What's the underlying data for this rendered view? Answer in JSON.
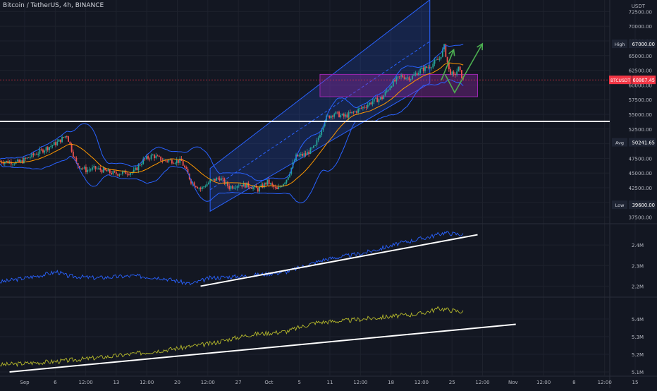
{
  "header": {
    "symbol_title": "Bitcoin / TetherUS, 4h, BINANCE"
  },
  "colors": {
    "background": "#131722",
    "grid": "#1e222d",
    "candle_up": "#26a69a",
    "candle_down": "#ef5350",
    "bollinger": "#2962ff",
    "ma": "#ff9800",
    "channel": "#2962ff",
    "zone": "#9c27b0",
    "arrow": "#4caf50",
    "obv": "#2962ff",
    "indicator2": "#b5b82b",
    "support": "#ffffff",
    "label_bg": "#131722",
    "price_tag": "#f23645"
  },
  "price_axis": {
    "currency": "USDT",
    "ticks": [
      "72500.00",
      "70000.00",
      "67500.00",
      "65000.00",
      "62500.00",
      "60000.00",
      "57500.00",
      "55000.00",
      "52500.00",
      "50000.00",
      "47500.00",
      "45000.00",
      "42500.00",
      "40000.00",
      "37500.00"
    ]
  },
  "price_labels": {
    "high_label": "High",
    "high_value": "67000.00",
    "current_symbol": "BTCUSDT",
    "current_value": "60867.45",
    "avg_label": "Avg",
    "avg_value": "50241.65",
    "low_label": "Low",
    "low_value": "39600.00"
  },
  "indicator1_axis": {
    "ticks": [
      "2.4M",
      "2.3M",
      "2.2M"
    ]
  },
  "indicator2_axis": {
    "ticks": [
      "5.4M",
      "5.3M",
      "5.2M",
      "5.1M"
    ]
  },
  "time_axis": {
    "ticks": [
      "Sep",
      "6",
      "12:00",
      "13",
      "12:00",
      "20",
      "12:00",
      "27",
      "Oct",
      "5",
      "11",
      "12:00",
      "18",
      "12:00",
      "25",
      "12:00",
      "Nov",
      "12:00",
      "8",
      "12:00",
      "15"
    ]
  },
  "chart_data": [
    {
      "type": "candlestick",
      "title": "Bitcoin / TetherUS, 4h, BINANCE",
      "ylim": [
        36500,
        73500
      ],
      "x_range_days": [
        0,
        75
      ],
      "series_close": [
        {
          "day": 0,
          "price": 47000
        },
        {
          "day": 2,
          "price": 46800
        },
        {
          "day": 4,
          "price": 48500
        },
        {
          "day": 6,
          "price": 50200
        },
        {
          "day": 7,
          "price": 51500
        },
        {
          "day": 8,
          "price": 46500
        },
        {
          "day": 9,
          "price": 45500
        },
        {
          "day": 10,
          "price": 45800
        },
        {
          "day": 12,
          "price": 44900
        },
        {
          "day": 14,
          "price": 45200
        },
        {
          "day": 15,
          "price": 47200
        },
        {
          "day": 16,
          "price": 48000
        },
        {
          "day": 17,
          "price": 47200
        },
        {
          "day": 19,
          "price": 47000
        },
        {
          "day": 20,
          "price": 43600
        },
        {
          "day": 21,
          "price": 42300
        },
        {
          "day": 22,
          "price": 43600
        },
        {
          "day": 23,
          "price": 44200
        },
        {
          "day": 24,
          "price": 42600
        },
        {
          "day": 25,
          "price": 43100
        },
        {
          "day": 26,
          "price": 42900
        },
        {
          "day": 27,
          "price": 42200
        },
        {
          "day": 28,
          "price": 43500
        },
        {
          "day": 29,
          "price": 42100
        },
        {
          "day": 30,
          "price": 44000
        },
        {
          "day": 31,
          "price": 47800
        },
        {
          "day": 32,
          "price": 48200
        },
        {
          "day": 33,
          "price": 49500
        },
        {
          "day": 34,
          "price": 54200
        },
        {
          "day": 35,
          "price": 55200
        },
        {
          "day": 36,
          "price": 54600
        },
        {
          "day": 37,
          "price": 55300
        },
        {
          "day": 38,
          "price": 56200
        },
        {
          "day": 39,
          "price": 57200
        },
        {
          "day": 40,
          "price": 57800
        },
        {
          "day": 41,
          "price": 60200
        },
        {
          "day": 42,
          "price": 61500
        },
        {
          "day": 43,
          "price": 61200
        },
        {
          "day": 44,
          "price": 62500
        },
        {
          "day": 45,
          "price": 63200
        },
        {
          "day": 46,
          "price": 64500
        },
        {
          "day": 46.5,
          "price": 66500
        },
        {
          "day": 47,
          "price": 62500
        },
        {
          "day": 47.5,
          "price": 61500
        },
        {
          "day": 48,
          "price": 62800
        },
        {
          "day": 48.5,
          "price": 60867
        }
      ],
      "high": 67000,
      "low": 39600,
      "avg": 50241.65,
      "current": 60867.45,
      "annotations": {
        "support_line_price": 53800,
        "resistance_zone": [
          58000,
          61800
        ],
        "zone_x_days": [
          33.5,
          50
        ],
        "channel_lower": [
          [
            22,
            38500
          ],
          [
            45,
            60300
          ]
        ],
        "channel_upper": [
          [
            22,
            45800
          ],
          [
            45,
            74500
          ]
        ],
        "arrow1": [
          [
            46.2,
            60800
          ],
          [
            47.5,
            66000
          ]
        ],
        "arrow2": [
          [
            46.6,
            61800
          ],
          [
            47.6,
            58700
          ],
          [
            50.5,
            67000
          ]
        ]
      }
    },
    {
      "type": "line",
      "name": "indicator-1",
      "ylim": [
        2.15,
        2.5
      ],
      "series": [
        {
          "day": 0,
          "value": 2.22
        },
        {
          "day": 4,
          "value": 2.25
        },
        {
          "day": 6,
          "value": 2.27
        },
        {
          "day": 7,
          "value": 2.25
        },
        {
          "day": 10,
          "value": 2.24
        },
        {
          "day": 14,
          "value": 2.25
        },
        {
          "day": 17,
          "value": 2.24
        },
        {
          "day": 20,
          "value": 2.21
        },
        {
          "day": 22,
          "value": 2.24
        },
        {
          "day": 26,
          "value": 2.25
        },
        {
          "day": 30,
          "value": 2.27
        },
        {
          "day": 34,
          "value": 2.33
        },
        {
          "day": 38,
          "value": 2.36
        },
        {
          "day": 42,
          "value": 2.41
        },
        {
          "day": 45,
          "value": 2.44
        },
        {
          "day": 46.5,
          "value": 2.46
        },
        {
          "day": 48.5,
          "value": 2.45
        }
      ],
      "trendline": [
        [
          21,
          2.2
        ],
        [
          50,
          2.45
        ]
      ]
    },
    {
      "type": "line",
      "name": "indicator-2",
      "ylim": [
        5.08,
        5.52
      ],
      "series": [
        {
          "day": 0,
          "value": 5.14
        },
        {
          "day": 6,
          "value": 5.16
        },
        {
          "day": 12,
          "value": 5.19
        },
        {
          "day": 18,
          "value": 5.23
        },
        {
          "day": 22,
          "value": 5.26
        },
        {
          "day": 26,
          "value": 5.31
        },
        {
          "day": 30,
          "value": 5.33
        },
        {
          "day": 33,
          "value": 5.38
        },
        {
          "day": 36,
          "value": 5.39
        },
        {
          "day": 40,
          "value": 5.41
        },
        {
          "day": 44,
          "value": 5.43
        },
        {
          "day": 46,
          "value": 5.46
        },
        {
          "day": 48.5,
          "value": 5.44
        }
      ],
      "trendline": [
        [
          1,
          5.1
        ],
        [
          54,
          5.37
        ]
      ]
    }
  ]
}
